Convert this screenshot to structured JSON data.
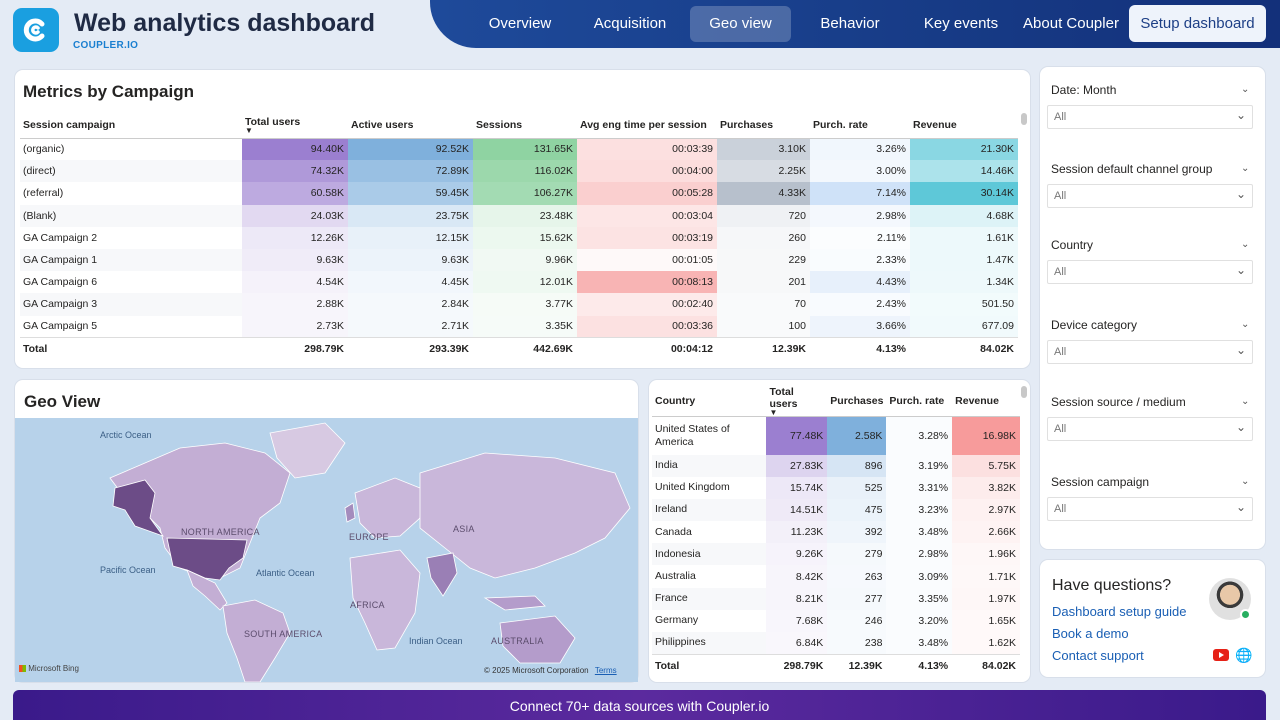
{
  "header": {
    "title": "Web analytics dashboard",
    "subtitle": "COUPLER.IO",
    "nav": [
      "Overview",
      "Acquisition",
      "Geo view",
      "Behavior",
      "Key events",
      "About Coupler"
    ],
    "active_nav": "Geo view",
    "setup_button": "Setup dashboard"
  },
  "campaign_table": {
    "title": "Metrics by Campaign",
    "columns": [
      "Session campaign",
      "Total users",
      "Active users",
      "Sessions",
      "Avg eng time per session",
      "Purchases",
      "Purch. rate",
      "Revenue"
    ],
    "sorted_column": "Total users",
    "rows": [
      [
        "(organic)",
        "94.40K",
        "92.52K",
        "131.65K",
        "00:03:39",
        "3.10K",
        "3.26%",
        "21.30K"
      ],
      [
        "(direct)",
        "74.32K",
        "72.89K",
        "116.02K",
        "00:04:00",
        "2.25K",
        "3.00%",
        "14.46K"
      ],
      [
        "(referral)",
        "60.58K",
        "59.45K",
        "106.27K",
        "00:05:28",
        "4.33K",
        "7.14%",
        "30.14K"
      ],
      [
        "(Blank)",
        "24.03K",
        "23.75K",
        "23.48K",
        "00:03:04",
        "720",
        "2.98%",
        "4.68K"
      ],
      [
        "GA Campaign 2",
        "12.26K",
        "12.15K",
        "15.62K",
        "00:03:19",
        "260",
        "2.11%",
        "1.61K"
      ],
      [
        "GA Campaign 1",
        "9.63K",
        "9.63K",
        "9.96K",
        "00:01:05",
        "229",
        "2.33%",
        "1.47K"
      ],
      [
        "GA Campaign 6",
        "4.54K",
        "4.45K",
        "12.01K",
        "00:08:13",
        "201",
        "4.43%",
        "1.34K"
      ],
      [
        "GA Campaign 3",
        "2.88K",
        "2.84K",
        "3.77K",
        "00:02:40",
        "70",
        "2.43%",
        "501.50"
      ],
      [
        "GA Campaign 5",
        "2.73K",
        "2.71K",
        "3.35K",
        "00:03:36",
        "100",
        "3.66%",
        "677.09"
      ]
    ],
    "total": [
      "Total",
      "298.79K",
      "293.39K",
      "442.69K",
      "00:04:12",
      "12.39K",
      "4.13%",
      "84.02K"
    ]
  },
  "geo": {
    "title": "Geo View",
    "labels": {
      "arctic": "Arctic Ocean",
      "north_america": "NORTH AMERICA",
      "europe": "EUROPE",
      "asia": "ASIA",
      "pacific": "Pacific Ocean",
      "atlantic": "Atlantic Ocean",
      "africa": "AFRICA",
      "south_america": "SOUTH AMERICA",
      "indian": "Indian Ocean",
      "australia": "AUSTRALIA"
    },
    "bing": "Microsoft Bing",
    "copyright": "© 2025 Microsoft Corporation",
    "terms": "Terms"
  },
  "country_table": {
    "columns": [
      "Country",
      "Total users",
      "Purchases",
      "Purch. rate",
      "Revenue"
    ],
    "sorted_column": "Total users",
    "rows": [
      [
        "United States of America",
        "77.48K",
        "2.58K",
        "3.28%",
        "16.98K"
      ],
      [
        "India",
        "27.83K",
        "896",
        "3.19%",
        "5.75K"
      ],
      [
        "United Kingdom",
        "15.74K",
        "525",
        "3.31%",
        "3.82K"
      ],
      [
        "Ireland",
        "14.51K",
        "475",
        "3.23%",
        "2.97K"
      ],
      [
        "Canada",
        "11.23K",
        "392",
        "3.48%",
        "2.66K"
      ],
      [
        "Indonesia",
        "9.26K",
        "279",
        "2.98%",
        "1.96K"
      ],
      [
        "Australia",
        "8.42K",
        "263",
        "3.09%",
        "1.71K"
      ],
      [
        "France",
        "8.21K",
        "277",
        "3.35%",
        "1.97K"
      ],
      [
        "Germany",
        "7.68K",
        "246",
        "3.20%",
        "1.65K"
      ],
      [
        "Philippines",
        "6.84K",
        "238",
        "3.48%",
        "1.62K"
      ]
    ],
    "total": [
      "Total",
      "298.79K",
      "12.39K",
      "4.13%",
      "84.02K"
    ]
  },
  "filters": [
    {
      "label": "Date: Month",
      "value": "All"
    },
    {
      "label": "Session default channel group",
      "value": "All"
    },
    {
      "label": "Country",
      "value": "All"
    },
    {
      "label": "Device category",
      "value": "All"
    },
    {
      "label": "Session source / medium",
      "value": "All"
    },
    {
      "label": "Session campaign",
      "value": "All"
    }
  ],
  "help": {
    "title": "Have questions?",
    "links": [
      "Dashboard setup guide",
      "Book a demo",
      "Contact support"
    ]
  },
  "footer": {
    "text": "Connect 70+ data sources with Coupler.io"
  },
  "colors": {
    "nav": "#173b86",
    "total_users": "#9b7fd0",
    "active_users": "#7fb0dc",
    "sessions": "#8fd3a2",
    "avg_time": "#f8b4b4",
    "purchases": "#b7c0cc",
    "purch_rate": "#cfe2f8",
    "revenue": "#5ec8d8",
    "country_revenue": "#f79b9b",
    "footer": "#4a228f"
  }
}
